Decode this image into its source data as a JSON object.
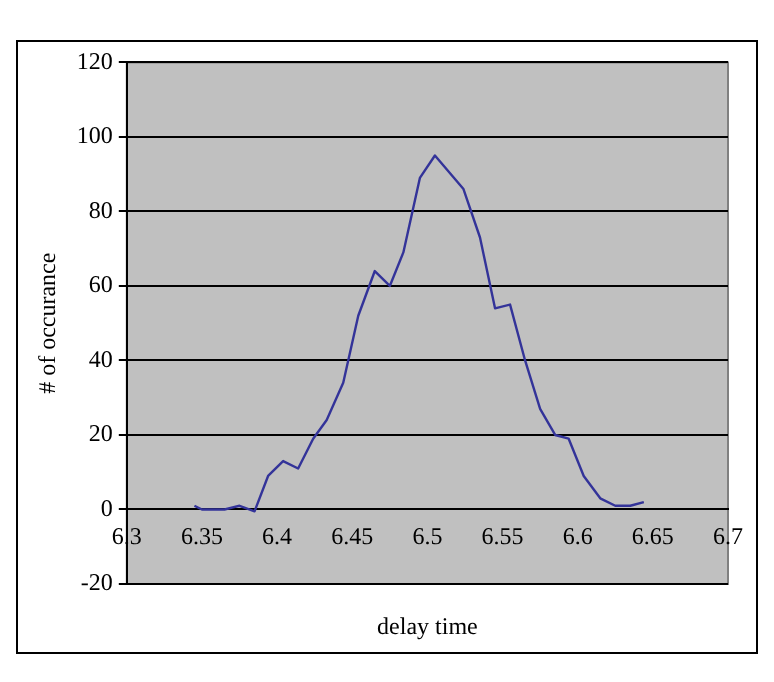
{
  "chart_data": {
    "type": "line",
    "xlabel": "delay time",
    "ylabel": "# of occurance",
    "x": [
      6.345,
      6.35,
      6.365,
      6.375,
      6.385,
      6.394,
      6.404,
      6.414,
      6.424,
      6.433,
      6.444,
      6.454,
      6.465,
      6.475,
      6.484,
      6.495,
      6.505,
      6.524,
      6.535,
      6.545,
      6.555,
      6.565,
      6.575,
      6.585,
      6.594,
      6.604,
      6.615,
      6.625,
      6.635,
      6.644
    ],
    "series": [
      {
        "color": "#333399",
        "values": [
          1,
          0,
          0,
          1,
          -0.5,
          9,
          13,
          11,
          19,
          24,
          34,
          52,
          64,
          60,
          69,
          89,
          95,
          86,
          73,
          54,
          55,
          40,
          27,
          20,
          19,
          9,
          3,
          1,
          1,
          2
        ]
      }
    ],
    "xlim": [
      6.3,
      6.7
    ],
    "xticks": [
      6.3,
      6.35,
      6.4,
      6.45,
      6.5,
      6.55,
      6.6,
      6.65,
      6.7
    ],
    "ylim": [
      -20,
      120
    ],
    "yticks": [
      -20,
      0,
      20,
      40,
      60,
      80,
      100,
      120
    ],
    "grid": "y",
    "legend": false,
    "marker": "none",
    "line_style": "solid"
  }
}
